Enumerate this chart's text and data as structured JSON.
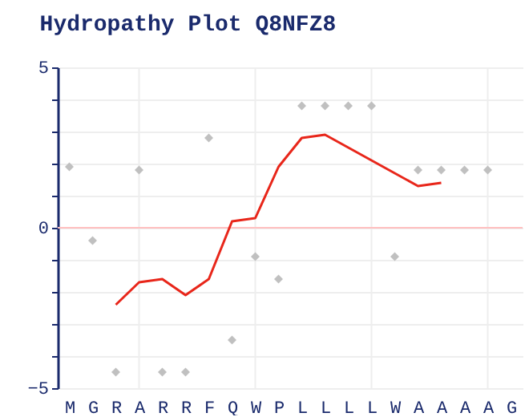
{
  "chart_data": {
    "type": "scatter",
    "title": "Hydropathy Plot Q8NFZ8",
    "categories": [
      "M",
      "G",
      "R",
      "A",
      "R",
      "R",
      "F",
      "Q",
      "W",
      "P",
      "L",
      "L",
      "L",
      "L",
      "W",
      "A",
      "A",
      "A",
      "A",
      "G"
    ],
    "series": [
      {
        "type": "scatter",
        "color": "#c0c0c0",
        "marker": "diamond",
        "values": [
          1.9,
          -0.4,
          -4.5,
          1.8,
          -4.5,
          -4.5,
          2.8,
          -3.5,
          -0.9,
          -1.6,
          3.8,
          3.8,
          3.8,
          3.8,
          -0.9,
          1.8,
          1.8,
          1.8,
          1.8,
          null
        ]
      },
      {
        "type": "line",
        "color": "#e8261a",
        "values": [
          null,
          null,
          -2.4,
          -1.7,
          -1.6,
          -2.1,
          -1.6,
          0.2,
          0.3,
          1.9,
          2.8,
          2.9,
          2.5,
          2.1,
          1.7,
          1.3,
          1.4,
          null,
          null,
          null
        ]
      }
    ],
    "ylim": [
      -5,
      5
    ],
    "yticks": [
      -5,
      {
        "value": -4,
        "label": null
      },
      {
        "value": -3,
        "label": null
      },
      {
        "value": -2,
        "label": null
      },
      {
        "value": -1,
        "label": null
      },
      0,
      {
        "value": 1,
        "label": null
      },
      {
        "value": 2,
        "label": null
      },
      {
        "value": 3,
        "label": null
      },
      {
        "value": 4,
        "label": null
      },
      5
    ],
    "ref_lines": [
      {
        "axis": "y",
        "value": 0,
        "color": "#ffc0c0"
      }
    ],
    "grid": true
  }
}
